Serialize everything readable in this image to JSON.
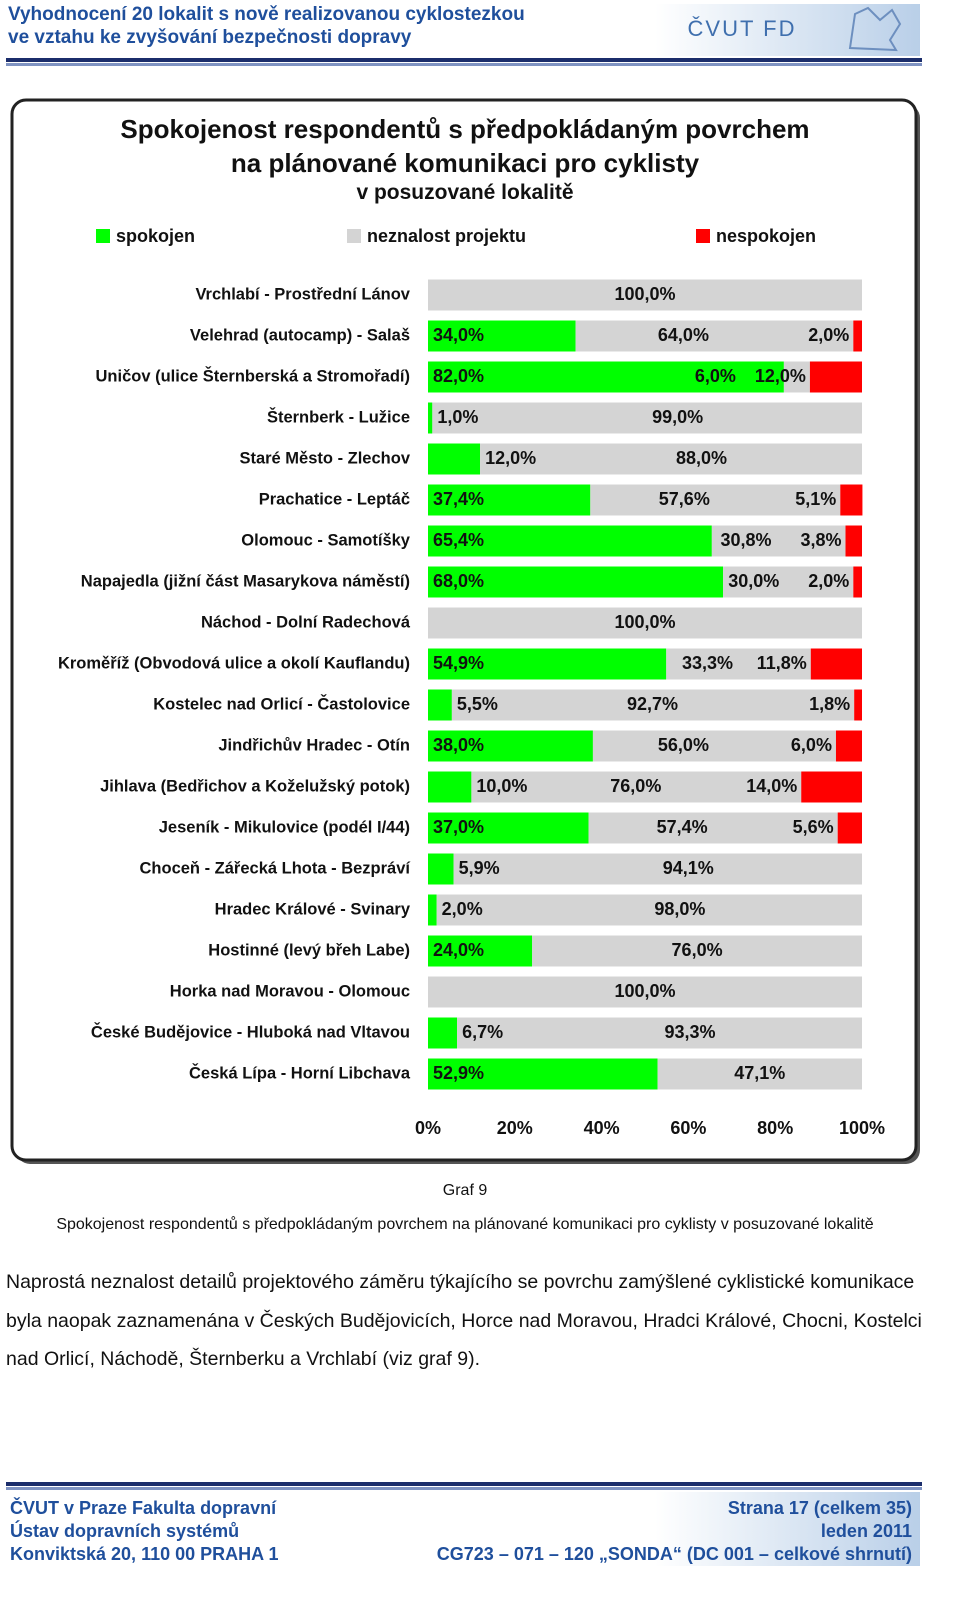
{
  "header": {
    "title_lines": [
      "Vyhodnocení 20 lokalit s nově realizovanou cyklostezkou",
      "ve vztahu ke zvyšování bezpečnosti dopravy"
    ],
    "logo": "ČVUT FD"
  },
  "chart_data": {
    "type": "stacked-bar-horizontal",
    "title": "Spokojenost respondentů s předpokládaným povrchem na plánované komunikaci pro cyklisty",
    "subtitle": "v posuzované lokalitě",
    "categories": [
      "Vrchlabí - Prostřední Lánov",
      "Velehrad (autocamp) - Salaš",
      "Uničov (ulice Šternberská a Stromořadí)",
      "Šternberk - Lužice",
      "Staré Město - Zlechov",
      "Prachatice - Leptáč",
      "Olomouc - Samotíšky",
      "Napajedla (jižní část Masarykova náměstí)",
      "Náchod - Dolní Radechová",
      "Kroměříž (Obvodová ulice a okolí Kauflandu)",
      "Kostelec nad Orlicí - Častolovice",
      "Jindřichův Hradec - Otín",
      "Jihlava (Bedřichov a Koželužský potok)",
      "Jeseník - Mikulovice (podél I/44)",
      "Choceň - Zářecká Lhota - Bezpráví",
      "Hradec Králové - Svinary",
      "Hostinné (levý břeh Labe)",
      "Horka nad Moravou - Olomouc",
      "České Budějovice - Hluboká nad Vltavou",
      "Česká Lípa - Horní Libchava"
    ],
    "series": [
      {
        "name": "spokojen",
        "color": "#00ff00",
        "values": [
          0,
          34,
          82,
          1,
          12,
          37.4,
          65.4,
          68,
          0,
          54.9,
          5.5,
          38,
          10,
          37,
          5.9,
          2,
          24,
          0,
          6.7,
          52.9
        ],
        "value_labels": [
          null,
          "34,0%",
          "82,0%",
          "1,0%",
          "12,0%",
          "37,4%",
          "65,4%",
          "68,0%",
          null,
          "54,9%",
          "5,5%",
          "38,0%",
          "10,0%",
          "37,0%",
          "5,9%",
          "2,0%",
          "24,0%",
          null,
          "6,7%",
          "52,9%"
        ]
      },
      {
        "name": "neznalost projektu",
        "color": "#d4d4d4",
        "values": [
          100,
          64,
          6,
          99,
          88,
          57.6,
          30.8,
          30,
          100,
          33.3,
          92.7,
          56,
          76,
          57.4,
          94.1,
          98,
          76,
          100,
          93.3,
          47.1
        ],
        "value_labels": [
          "100,0%",
          "64,0%",
          "6,0%",
          "99,0%",
          "88,0%",
          "57,6%",
          "30,8%",
          "30,0%",
          "100,0%",
          "33,3%",
          "92,7%",
          "56,0%",
          "76,0%",
          "57,4%",
          "94,1%",
          "98,0%",
          "76,0%",
          "100,0%",
          "93,3%",
          "47,1%"
        ]
      },
      {
        "name": "nespokojen",
        "color": "#ff0000",
        "values": [
          0,
          2,
          12,
          0,
          0,
          5.1,
          3.8,
          2,
          0,
          11.8,
          1.8,
          6,
          14,
          5.6,
          0,
          0,
          0,
          0,
          0,
          0
        ],
        "value_labels": [
          null,
          "2,0%",
          "12,0%",
          null,
          null,
          "5,1%",
          "3,8%",
          "2,0%",
          null,
          "11,8%",
          "1,8%",
          "6,0%",
          "14,0%",
          "5,6%",
          null,
          null,
          null,
          null,
          null,
          null
        ]
      }
    ],
    "xlim": [
      0,
      100
    ],
    "xticks": [
      {
        "value": 0,
        "label": "0%"
      },
      {
        "value": 20,
        "label": "20%"
      },
      {
        "value": 40,
        "label": "40%"
      },
      {
        "value": 60,
        "label": "60%"
      },
      {
        "value": 80,
        "label": "80%"
      },
      {
        "value": 100,
        "label": "100%"
      }
    ],
    "legend": "top"
  },
  "caption": {
    "label": "Graf 9",
    "text": "Spokojenost respondentů s předpokládaným povrchem na plánované komunikaci pro cyklisty v posuzované lokalitě"
  },
  "paragraph": "Naprostá neznalost detailů projektového záměru týkajícího se povrchu zamýšlené cyklistické komunikace byla naopak zaznamenána v Českých Budějovicích, Horce nad Moravou, Hradci Králové, Chocni, Kostelci nad Orlicí, Náchodě, Šternberku a Vrchlabí (viz graf 9).",
  "footer": {
    "left": [
      "ČVUT v Praze Fakulta dopravní",
      "Ústav dopravních systémů",
      "Konviktská 20, 110 00  PRAHA 1"
    ],
    "right": [
      "Strana 17 (celkem 35)",
      "leden 2011",
      "CG723 – 071 – 120 „SONDA“ (DC 001 – celkové shrnutí)"
    ]
  }
}
